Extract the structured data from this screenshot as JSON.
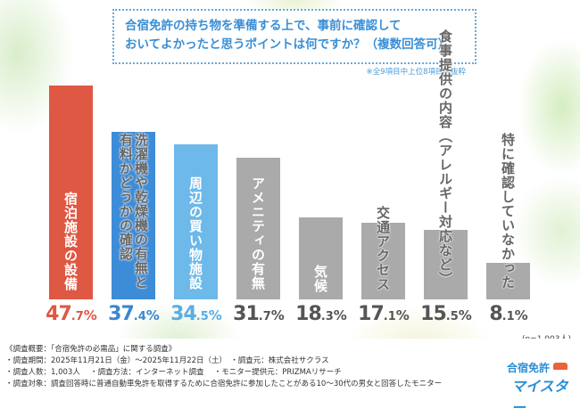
{
  "header": {
    "title_line1": "合宿免許の持ち物を準備する上で、事前に確認して",
    "title_line2": "おいてよかったと思うポイントは何ですか？（複数回答可）",
    "note": "※全9項目中上位8項目を抜粋"
  },
  "chart_data": {
    "type": "bar",
    "title": "合宿免許の持ち物を準備する上で、事前に確認しておいてよかったと思うポイントは何ですか？（複数回答可）",
    "categories": [
      "宿泊施設の設備",
      "洗濯機や乾燥機の有無と\n有料かどうかの確認",
      "周辺の買い物施設",
      "アメニティの有無",
      "気候",
      "交通アクセス",
      "食事提供の内容（アレルギー対応など）",
      "特に確認していなかった"
    ],
    "values": [
      47.7,
      37.4,
      34.5,
      31.7,
      18.3,
      17.1,
      15.5,
      8.1
    ],
    "unit": "%",
    "colors": [
      "#df5843",
      "#3d8cd8",
      "#6cb9ea",
      "#aaaaaa",
      "#aaaaaa",
      "#aaaaaa",
      "#aaaaaa",
      "#aaaaaa"
    ],
    "text_colors": [
      "#df5843",
      "#3b86d0",
      "#58ade6",
      "#555555",
      "#555555",
      "#555555",
      "#555555",
      "#555555"
    ],
    "ylim": [
      0,
      50
    ],
    "grid": false,
    "sample": "(n=1,003人)"
  },
  "footer": {
    "line1": "《調査概要：「合宿免許の必需品」に関する調査》",
    "line2": "・調査期間：2025年11月21日（金）～2025年11月22日（土）　・調査元：株式会社サクラス",
    "line3": "・調査人数：1,003人　 ・調査方法：インターネット調査　 ・モニター提供元：PRIZMAリサーチ",
    "line4": "・調査対象：調査回答時に普通自動車免許を取得するために合宿免許に参加したことがある10～30代の男女と回答したモニター"
  },
  "logo": {
    "line1": "合宿免許",
    "line2": "マイスター"
  }
}
